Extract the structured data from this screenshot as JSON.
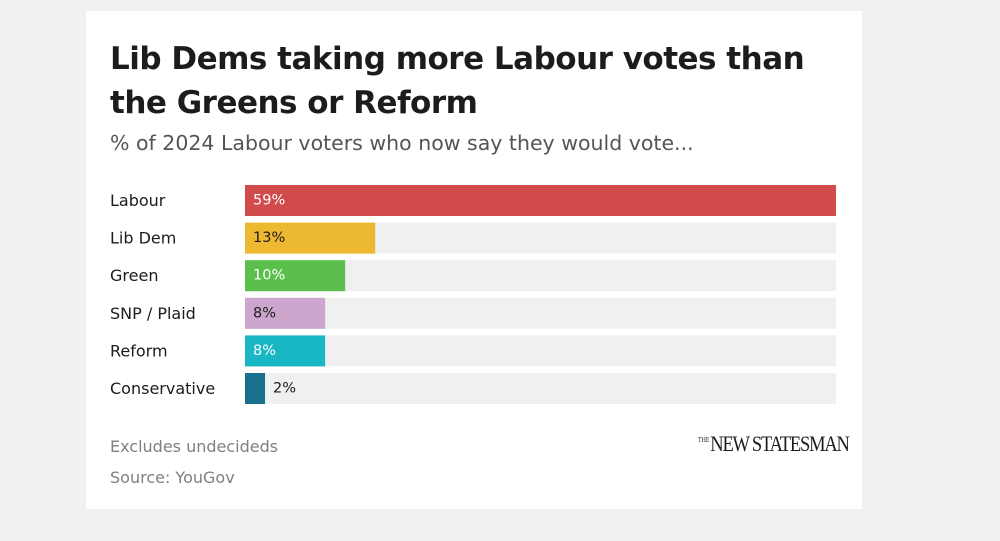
{
  "chart_data": {
    "type": "bar",
    "orientation": "horizontal",
    "title": "Lib Dems taking more Labour votes than the Greens or Reform",
    "subtitle": "% of 2024 Labour voters who now say they would vote...",
    "categories": [
      "Labour",
      "Lib Dem",
      "Green",
      "SNP / Plaid",
      "Reform",
      "Conservative"
    ],
    "values": [
      59,
      13,
      10,
      8,
      8,
      2
    ],
    "value_labels": [
      "59%",
      "13%",
      "10%",
      "8%",
      "8%",
      "2%"
    ],
    "colors": [
      "#d14b4b",
      "#ecb930",
      "#5bbf4b",
      "#cca6cc",
      "#19b7c4",
      "#18708d"
    ],
    "label_colors": [
      "#ffffff",
      "#1c1c1c",
      "#ffffff",
      "#1c1c1c",
      "#ffffff",
      "#1c1c1c"
    ],
    "track_color": "#f0f0f0",
    "xlim": [
      0,
      59
    ],
    "grid": false,
    "legend": "none"
  },
  "notes": {
    "excludes": "Excludes undecideds",
    "source": "Source: YouGov"
  },
  "branding": {
    "logo_small": "THE",
    "logo_main": "NEW STATESMAN"
  }
}
